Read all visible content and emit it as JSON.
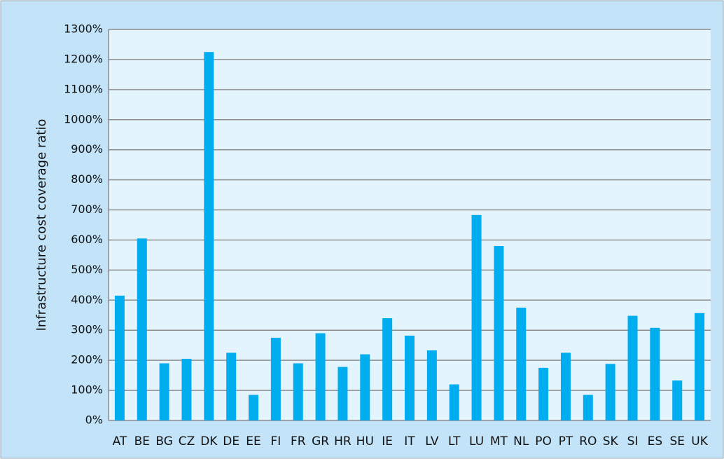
{
  "chart_data": {
    "type": "bar",
    "y_label": "Infrastructure cost coverage ratio",
    "categories": [
      "AT",
      "BE",
      "BG",
      "CZ",
      "DK",
      "DE",
      "EE",
      "FI",
      "FR",
      "GR",
      "HR",
      "HU",
      "IE",
      "IT",
      "LV",
      "LT",
      "LU",
      "MT",
      "NL",
      "PO",
      "PT",
      "RO",
      "SK",
      "SI",
      "ES",
      "SE",
      "UK"
    ],
    "values": [
      415,
      605,
      190,
      205,
      1225,
      225,
      85,
      275,
      190,
      290,
      178,
      220,
      340,
      282,
      233,
      120,
      683,
      580,
      375,
      175,
      225,
      85,
      188,
      348,
      308,
      133,
      357
    ],
    "color": "#00aeef",
    "ylim": [
      0,
      1300
    ],
    "yticks": [
      {
        "value": 0,
        "label": "0%"
      },
      {
        "value": 100,
        "label": "100%"
      },
      {
        "value": 200,
        "label": "200%"
      },
      {
        "value": 300,
        "label": "300%"
      },
      {
        "value": 400,
        "label": "400%"
      },
      {
        "value": 500,
        "label": "500%"
      },
      {
        "value": 600,
        "label": "600%"
      },
      {
        "value": 700,
        "label": "700%"
      },
      {
        "value": 800,
        "label": "800%"
      },
      {
        "value": 900,
        "label": "900%"
      },
      {
        "value": 1000,
        "label": "1000%"
      },
      {
        "value": 1100,
        "label": "1100%"
      },
      {
        "value": 1200,
        "label": "1200%"
      },
      {
        "value": 1300,
        "label": "1300%"
      }
    ],
    "grid": true
  }
}
